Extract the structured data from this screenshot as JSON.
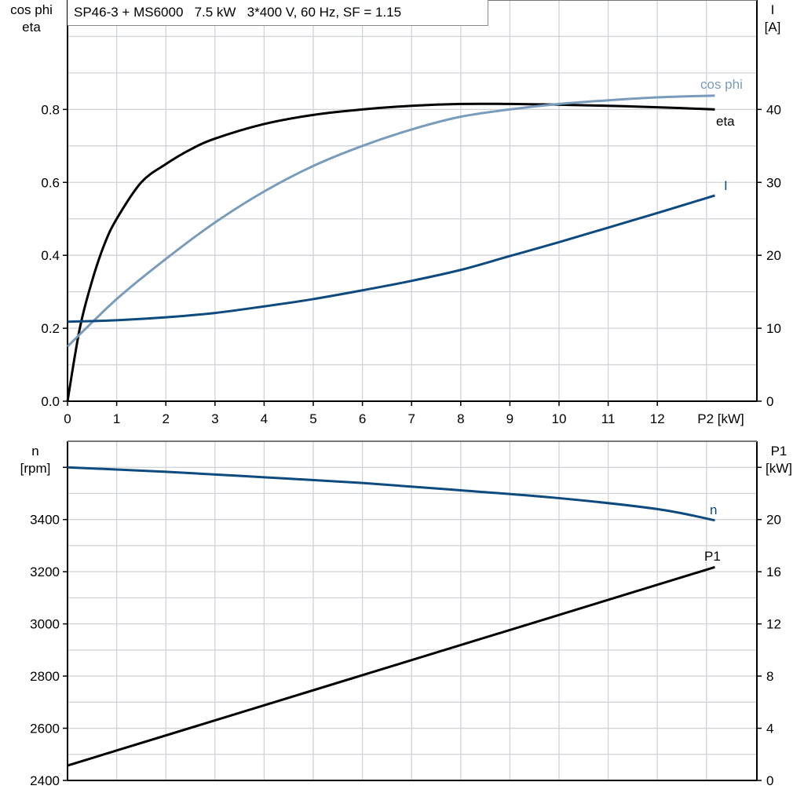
{
  "title": "SP46-3 + MS6000   7.5 kW   3*400 V, 60 Hz, SF = 1.15",
  "chart_data": [
    {
      "type": "line",
      "xlabel": "P2 [kW]",
      "ylabel_left": [
        "cos phi",
        "eta"
      ],
      "ylabel_right": [
        "I",
        "[A]"
      ],
      "xlim": [
        0,
        14
      ],
      "ylim_left": [
        0,
        1.1
      ],
      "ylim_right": [
        0,
        55
      ],
      "x_ticks": [
        "0",
        "1",
        "2",
        "3",
        "4",
        "5",
        "6",
        "7",
        "8",
        "9",
        "10",
        "11",
        "12"
      ],
      "y_ticks_left": [
        "0.0",
        "0.2",
        "0.4",
        "0.6",
        "0.8"
      ],
      "y_ticks_right": [
        "0",
        "10",
        "20",
        "30",
        "40"
      ],
      "grid": true,
      "series": [
        {
          "name": "eta",
          "axis": "left",
          "color": "#000000",
          "x": [
            0,
            0.25,
            0.5,
            0.75,
            1,
            1.5,
            2,
            2.5,
            3,
            4,
            5,
            6,
            7,
            8,
            9,
            10,
            11,
            12,
            13.17
          ],
          "y": [
            0,
            0.2,
            0.33,
            0.43,
            0.5,
            0.6,
            0.65,
            0.69,
            0.72,
            0.76,
            0.785,
            0.8,
            0.81,
            0.815,
            0.815,
            0.813,
            0.81,
            0.806,
            0.8
          ]
        },
        {
          "name": "cos phi",
          "axis": "left",
          "color": "#7a9cbc",
          "x": [
            0,
            1,
            2,
            3,
            4,
            5,
            6,
            7,
            8,
            9,
            10,
            11,
            12,
            13.17
          ],
          "y": [
            0.15,
            0.28,
            0.39,
            0.49,
            0.575,
            0.645,
            0.7,
            0.745,
            0.78,
            0.8,
            0.815,
            0.825,
            0.833,
            0.838
          ]
        },
        {
          "name": "I",
          "axis": "right",
          "color": "#0d4a80",
          "x": [
            0,
            1,
            2,
            3,
            4,
            5,
            6,
            7,
            8,
            9,
            10,
            11,
            12,
            13.17
          ],
          "y": [
            10.9,
            11.1,
            11.5,
            12.1,
            13,
            14,
            15.2,
            16.5,
            18,
            19.9,
            21.8,
            23.8,
            25.8,
            28.2
          ]
        }
      ]
    },
    {
      "type": "line",
      "xlim": [
        0,
        14
      ],
      "ylabel_left": [
        "n",
        "[rpm]"
      ],
      "ylabel_right": [
        "P1",
        "[kW]"
      ],
      "ylim_left": [
        2400,
        3700
      ],
      "ylim_right": [
        0,
        26
      ],
      "y_ticks_left": [
        "2400",
        "2600",
        "2800",
        "3000",
        "3200",
        "3400"
      ],
      "y_ticks_right": [
        "0",
        "4",
        "8",
        "12",
        "16",
        "20"
      ],
      "grid": true,
      "series": [
        {
          "name": "n",
          "axis": "left",
          "color": "#0d4a80",
          "x": [
            0,
            2,
            4,
            6,
            8,
            10,
            12,
            13.17
          ],
          "y": [
            3600,
            3583,
            3562,
            3540,
            3512,
            3482,
            3440,
            3397
          ]
        },
        {
          "name": "P1",
          "axis": "right",
          "color": "#000000",
          "x": [
            0,
            13.17
          ],
          "y": [
            1.14,
            16.35
          ]
        }
      ]
    }
  ]
}
